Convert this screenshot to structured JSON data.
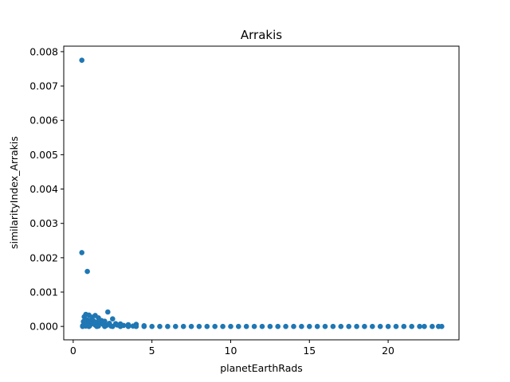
{
  "chart_data": {
    "type": "scatter",
    "title": "Arrakis",
    "xlabel": "planetEarthRads",
    "ylabel": "similarityIndex_Arrakis",
    "xlim": [
      -0.6,
      24.5
    ],
    "ylim": [
      -0.00039,
      0.00816
    ],
    "xticks": [
      0,
      5,
      10,
      15,
      20
    ],
    "xtick_labels": [
      "0",
      "5",
      "10",
      "15",
      "20"
    ],
    "yticks": [
      0,
      0.001,
      0.002,
      0.003,
      0.004,
      0.005,
      0.006,
      0.007,
      0.008
    ],
    "ytick_labels": [
      "0.000",
      "0.001",
      "0.002",
      "0.003",
      "0.004",
      "0.005",
      "0.006",
      "0.007",
      "0.008"
    ],
    "grid": false,
    "color": "#1f77b4",
    "series": [
      {
        "points": [
          [
            0.55,
            0.00775
          ],
          [
            0.55,
            0.00215
          ],
          [
            0.9,
            0.0016
          ],
          [
            2.2,
            0.00042
          ],
          [
            0.8,
            0.00035
          ],
          [
            1.0,
            0.00033
          ],
          [
            1.4,
            0.00032
          ],
          [
            0.7,
            0.00028
          ],
          [
            1.2,
            0.00027
          ],
          [
            1.6,
            0.00025
          ],
          [
            2.5,
            0.00022
          ],
          [
            0.75,
            0.0002
          ],
          [
            0.9,
            0.00019
          ],
          [
            1.1,
            0.00018
          ],
          [
            1.3,
            0.00016
          ],
          [
            1.8,
            0.00017
          ],
          [
            2.0,
            0.00015
          ],
          [
            0.65,
            0.00014
          ],
          [
            0.85,
            0.00013
          ],
          [
            1.5,
            0.00012
          ],
          [
            1.0,
            0.00011
          ],
          [
            1.7,
            0.0001
          ],
          [
            2.3,
            9e-05
          ],
          [
            2.7,
            8e-05
          ],
          [
            3.0,
            7e-05
          ],
          [
            1.2,
            8e-05
          ],
          [
            1.9,
            6e-05
          ],
          [
            3.5,
            5e-05
          ],
          [
            4.0,
            6e-05
          ],
          [
            2.8,
            4e-05
          ],
          [
            0.95,
            5e-05
          ],
          [
            1.4,
            4e-05
          ],
          [
            2.1,
            3e-05
          ],
          [
            3.2,
            3e-05
          ],
          [
            4.5,
            2e-05
          ],
          [
            0.6,
            2e-05
          ],
          [
            0.8,
            1e-05
          ],
          [
            1.05,
            2e-05
          ],
          [
            1.6,
            1e-05
          ],
          [
            2.4,
            1e-05
          ],
          [
            3.8,
            1e-05
          ],
          [
            0.6,
            0
          ],
          [
            1.0,
            0
          ],
          [
            1.5,
            0
          ],
          [
            2.0,
            0
          ],
          [
            2.5,
            0
          ],
          [
            3.0,
            0
          ],
          [
            3.5,
            0
          ],
          [
            4.0,
            0
          ],
          [
            4.5,
            0
          ],
          [
            5.0,
            0
          ],
          [
            5.5,
            0
          ],
          [
            6.0,
            0
          ],
          [
            6.5,
            0
          ],
          [
            7.0,
            0
          ],
          [
            7.5,
            0
          ],
          [
            8.0,
            0
          ],
          [
            8.5,
            0
          ],
          [
            9.0,
            0
          ],
          [
            9.5,
            0
          ],
          [
            10.0,
            0
          ],
          [
            10.5,
            0
          ],
          [
            11.0,
            0
          ],
          [
            11.5,
            0
          ],
          [
            12.0,
            0
          ],
          [
            12.5,
            0
          ],
          [
            13.0,
            0
          ],
          [
            13.5,
            0
          ],
          [
            14.0,
            0
          ],
          [
            14.5,
            0
          ],
          [
            15.0,
            0
          ],
          [
            15.5,
            0
          ],
          [
            16.0,
            0
          ],
          [
            16.5,
            0
          ],
          [
            17.0,
            0
          ],
          [
            17.5,
            0
          ],
          [
            18.0,
            0
          ],
          [
            18.5,
            0
          ],
          [
            19.0,
            0
          ],
          [
            19.5,
            0
          ],
          [
            20.0,
            0
          ],
          [
            20.5,
            0
          ],
          [
            21.0,
            0
          ],
          [
            21.5,
            0
          ],
          [
            22.0,
            0
          ],
          [
            22.3,
            0
          ],
          [
            22.8,
            0
          ],
          [
            23.2,
            0
          ],
          [
            23.4,
            0
          ]
        ]
      }
    ]
  }
}
